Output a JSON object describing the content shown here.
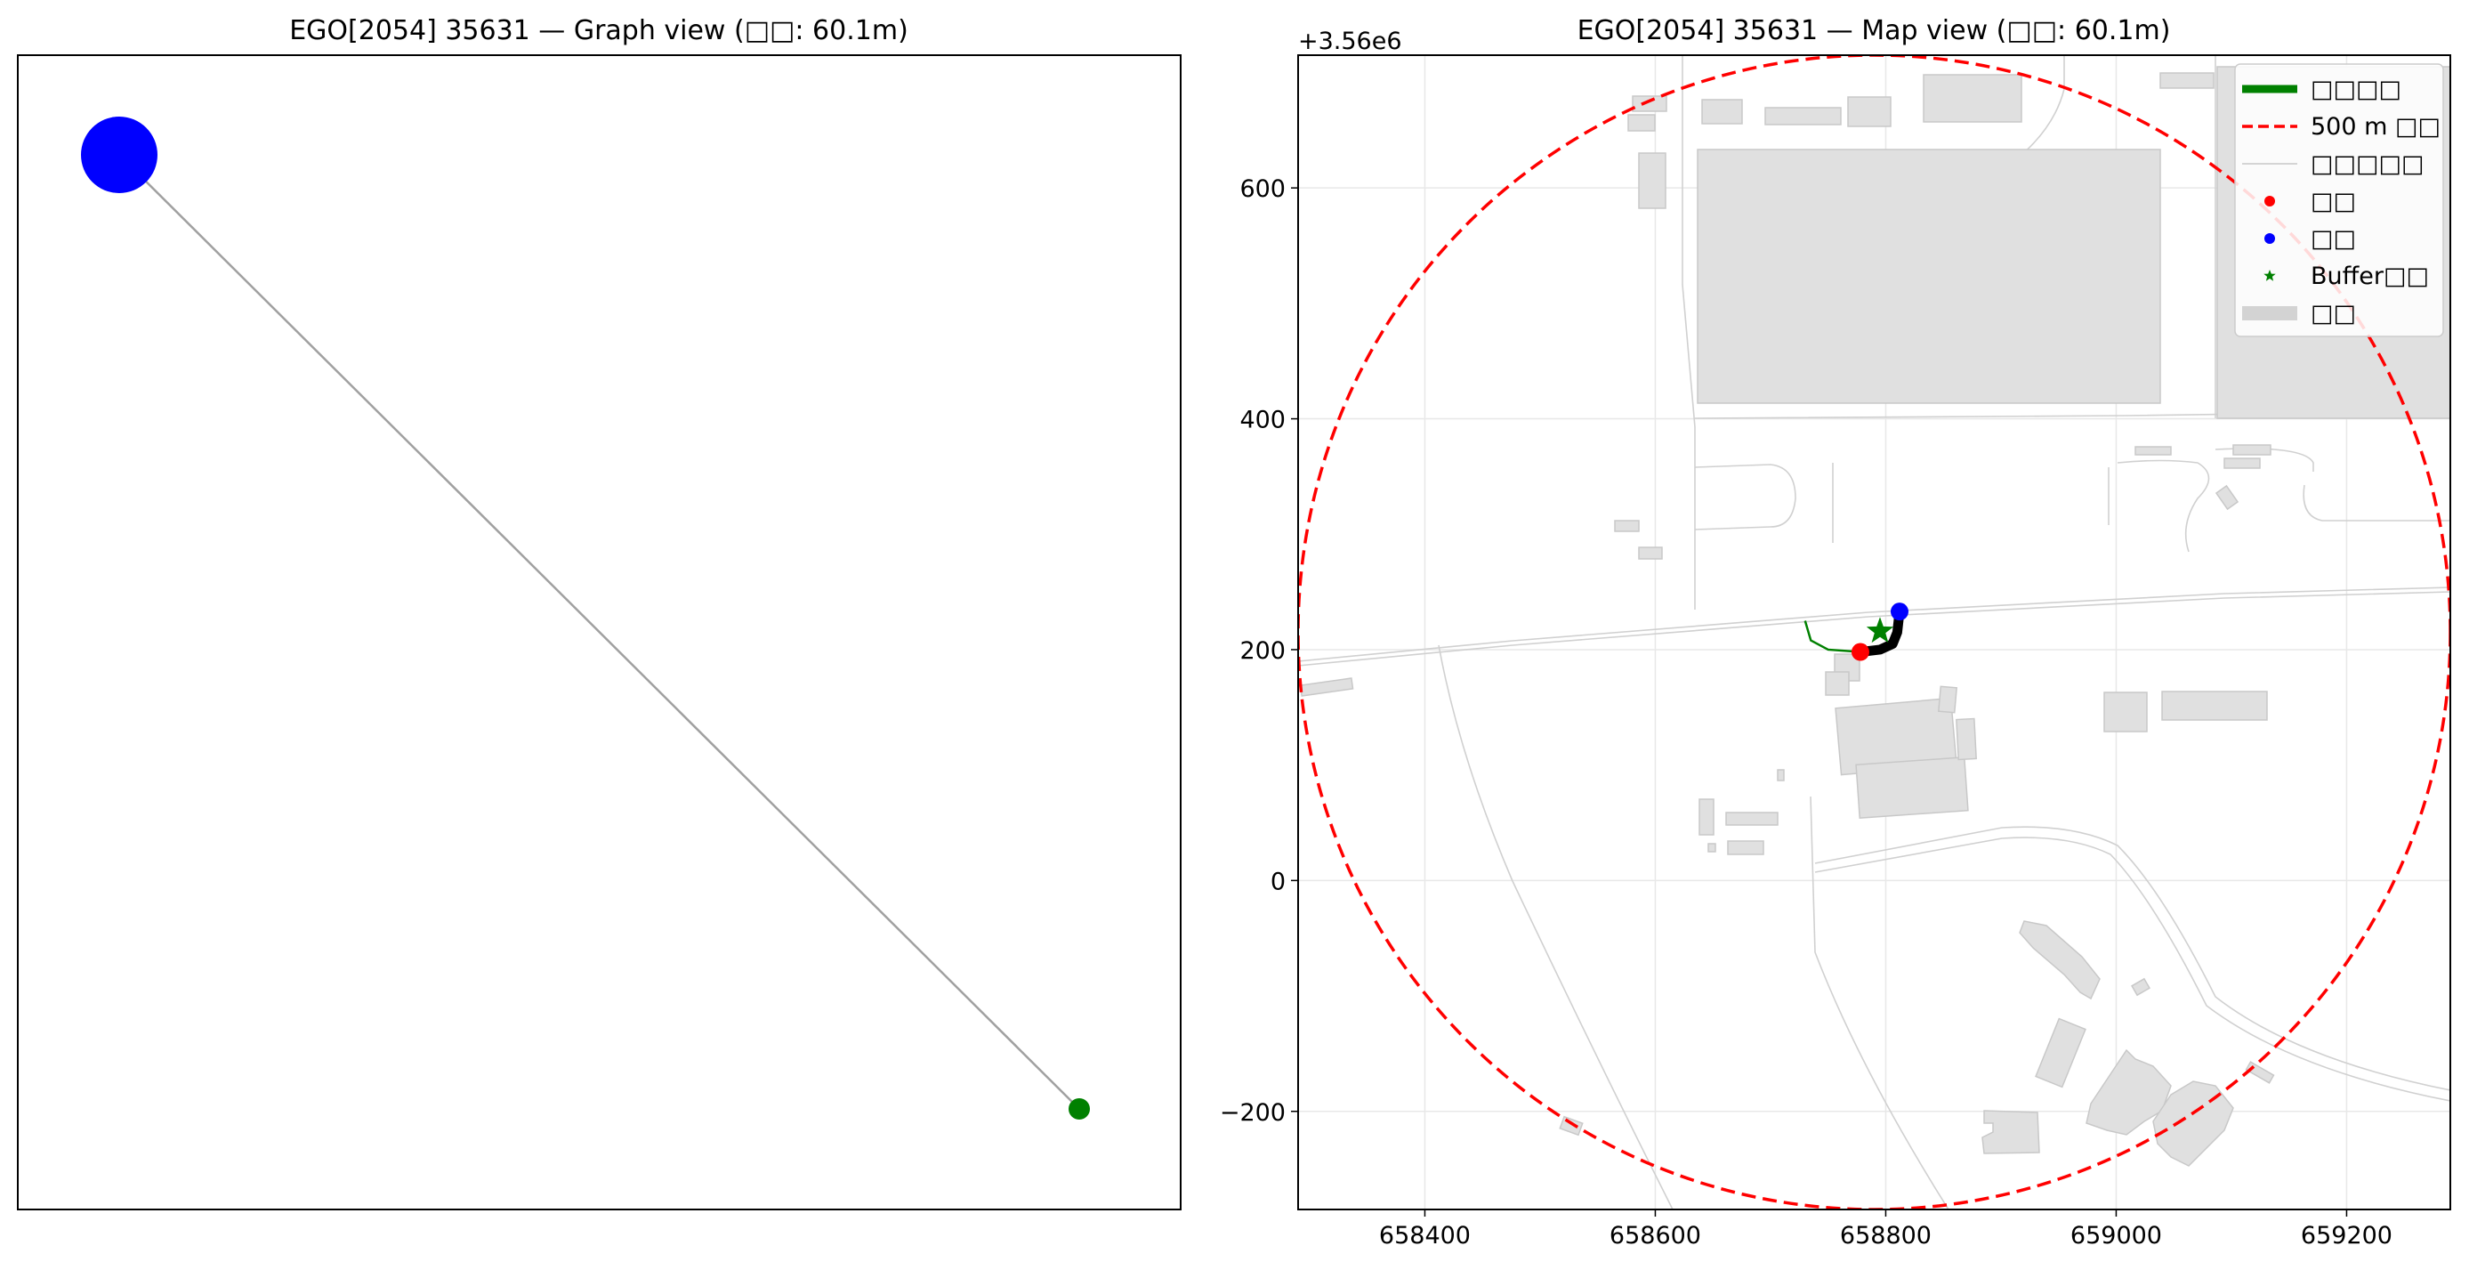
{
  "chart_data": [
    {
      "type": "graph",
      "title": "EGO[2054] 35631 — Graph view (□□: 60.1m)",
      "nodes": [
        {
          "name": "blue-node",
          "color": "#0000ff"
        },
        {
          "name": "green-node",
          "color": "#008000"
        }
      ],
      "edges": [
        {
          "from": 0,
          "to": 1,
          "color": "#a0a0a0"
        }
      ],
      "axes_visible": false
    },
    {
      "type": "map",
      "title": "EGO[2054] 35631 — Map view (□□: 60.1m)",
      "x_ticks": [
        "658400",
        "658600",
        "658800",
        "659000",
        "659200"
      ],
      "x_tick_values": [
        658400,
        658600,
        658800,
        659000,
        659200
      ],
      "y_ticks": [
        "600",
        "400",
        "200",
        "0",
        "−200"
      ],
      "y_tick_values": [
        600,
        400,
        200,
        0,
        -200
      ],
      "y_offset_label": "+3.56e6",
      "xlim": [
        658290,
        659290
      ],
      "ylim": [
        -285,
        715
      ],
      "grid": true,
      "buffer_circle": {
        "center": [
          658790,
          215
        ],
        "radius": 500,
        "color": "#ff0000"
      },
      "start_point": {
        "x": 658778,
        "y": 198,
        "color": "#ff0000"
      },
      "end_point": {
        "x": 658812,
        "y": 233,
        "color": "#0000ff"
      },
      "buffer_center": {
        "x": 658795,
        "y": 216,
        "color": "#008000"
      },
      "route": [
        [
          658778,
          198
        ],
        [
          658795,
          200
        ],
        [
          658806,
          205
        ],
        [
          658810,
          215
        ],
        [
          658812,
          233
        ]
      ],
      "green_path": [
        [
          658730,
          225
        ],
        [
          658735,
          208
        ],
        [
          658750,
          200
        ],
        [
          658778,
          198
        ]
      ],
      "legend": {
        "position": "top-right",
        "entries": [
          {
            "label": "□□□□",
            "style": "thick-line",
            "color": "#008000"
          },
          {
            "label": "500 m □□",
            "style": "dashed-line",
            "color": "#ff0000"
          },
          {
            "label": "□□□□□",
            "style": "thin-line",
            "color": "#c8c8c8"
          },
          {
            "label": "□□",
            "style": "dot",
            "color": "#ff0000"
          },
          {
            "label": "□□",
            "style": "dot",
            "color": "#0000ff"
          },
          {
            "label": "Buffer□□",
            "style": "star",
            "color": "#008000"
          },
          {
            "label": "□□",
            "style": "patch",
            "color": "#d3d3d3"
          }
        ]
      },
      "colors": {
        "building": "#e0e0e0",
        "building_edge": "#c8c8c8",
        "road": "#d0d0d0",
        "grid": "#e8e8e8"
      }
    }
  ]
}
